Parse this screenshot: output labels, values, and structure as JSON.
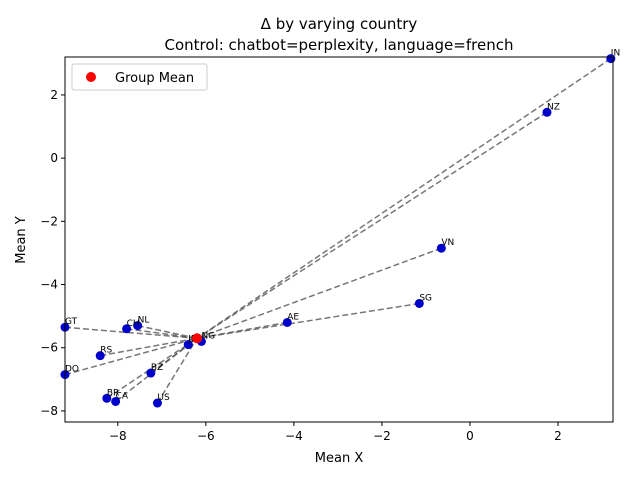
{
  "chart_data": {
    "type": "scatter",
    "title_line1": "Δ by varying country",
    "title_line2": "Control: chatbot=perplexity, language=french",
    "xlabel": "Mean X",
    "ylabel": "Mean Y",
    "xlim": [
      -9.2,
      3.25
    ],
    "ylim": [
      -8.35,
      3.2
    ],
    "xticks": [
      -8,
      -6,
      -4,
      -2,
      0,
      2
    ],
    "yticks": [
      -8,
      -6,
      -4,
      -2,
      0,
      2
    ],
    "legend": {
      "label": "Group Mean",
      "placement": "top-left"
    },
    "colors": {
      "points": "#0000cd",
      "mean": "#ff0000",
      "lines": "#555555",
      "point_labels": "#444444"
    },
    "group_mean": {
      "x": -6.2,
      "y": -5.7
    },
    "points": [
      {
        "label": "IN",
        "x": 3.2,
        "y": 3.15
      },
      {
        "label": "NZ",
        "x": 1.75,
        "y": 1.45
      },
      {
        "label": "VN",
        "x": -0.65,
        "y": -2.85
      },
      {
        "label": "SG",
        "x": -1.15,
        "y": -4.6
      },
      {
        "label": "AE",
        "x": -4.15,
        "y": -5.2
      },
      {
        "label": "NG",
        "x": -6.1,
        "y": -5.8
      },
      {
        "label": "JP",
        "x": -6.4,
        "y": -5.9
      },
      {
        "label": "NL",
        "x": -7.55,
        "y": -5.3
      },
      {
        "label": "CH",
        "x": -7.8,
        "y": -5.4
      },
      {
        "label": "GT",
        "x": -9.2,
        "y": -5.35
      },
      {
        "label": "RS",
        "x": -8.4,
        "y": -6.25
      },
      {
        "label": "BZ",
        "x": -7.25,
        "y": -6.8
      },
      {
        "label": "DO",
        "x": -9.2,
        "y": -6.85
      },
      {
        "label": "BR",
        "x": -8.25,
        "y": -7.6
      },
      {
        "label": "CA",
        "x": -8.05,
        "y": -7.7
      },
      {
        "label": "US",
        "x": -7.1,
        "y": -7.75
      }
    ]
  }
}
